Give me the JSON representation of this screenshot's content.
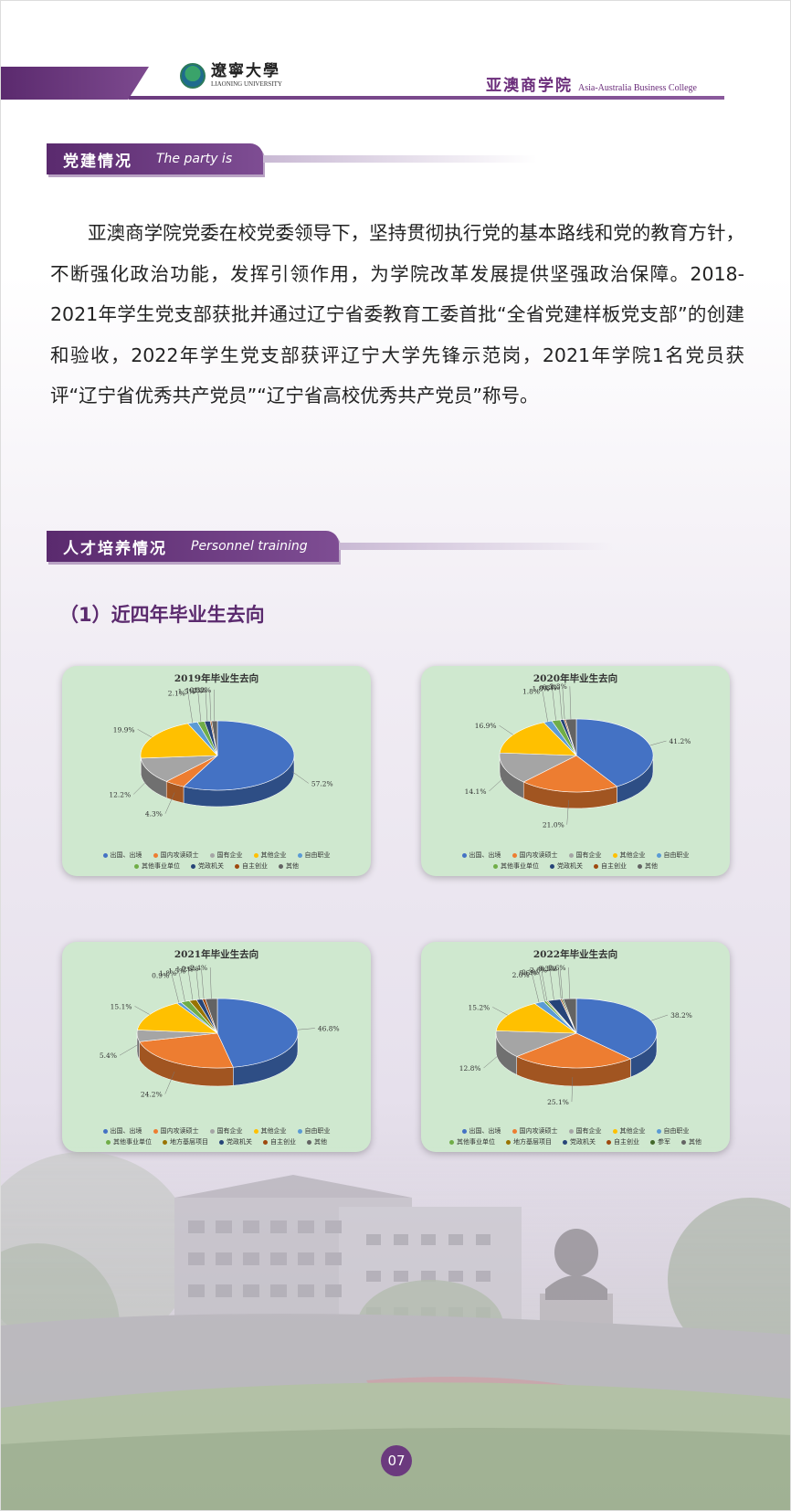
{
  "header": {
    "logo_cn": "遼寧大學",
    "logo_en": "LIAONING UNIVERSITY",
    "college_cn": "亚澳商学院",
    "college_en": "Asia-Australia Business College"
  },
  "section1": {
    "title_cn": "党建情况",
    "title_en": "The party is"
  },
  "paragraph": "亚澳商学院党委在校党委领导下，坚持贯彻执行党的基本路线和党的教育方针，不断强化政治功能，发挥引领作用，为学院改革发展提供坚强政治保障。2018-2021年学生党支部获批并通过辽宁省委教育工委首批“全省党建样板党支部”的创建和验收，2022年学生党支部获评辽宁大学先锋示范岗，2021年学院1名党员获评“辽宁省优秀共产党员”“辽宁省高校优秀共产党员”称号。",
  "section2": {
    "title_cn": "人才培养情况",
    "title_en": "Personnel training"
  },
  "subheading": "（1）近四年毕业生去向",
  "colors": {
    "出国、出境": "#4472c4",
    "国内攻读硕士": "#ed7d31",
    "国有企业": "#a5a5a5",
    "其他企业": "#ffc000",
    "自由职业": "#5b9bd5",
    "其他事业单位": "#70ad47",
    "党政机关": "#264478",
    "自主创业": "#9e480e",
    "其他": "#636363",
    "地方基层项目": "#997300",
    "参军": "#43682b"
  },
  "chart_data": [
    {
      "type": "pie",
      "title": "2019年毕业生去向",
      "categories": [
        "出国、出境",
        "国内攻读硕士",
        "国有企业",
        "其他企业",
        "自由职业",
        "其他事业单位",
        "党政机关",
        "自主创业",
        "其他"
      ],
      "values": [
        57.2,
        4.3,
        12.2,
        19.9,
        2.1,
        1.5,
        1.2,
        0.3,
        1.2
      ],
      "labels": [
        "57.2%",
        "4.3%",
        "12.2%",
        "19.9%",
        "2.1%",
        "1.5%",
        "1.2%",
        "0.3%",
        "1.2%"
      ]
    },
    {
      "type": "pie",
      "title": "2020年毕业生去向",
      "categories": [
        "出国、出境",
        "国内攻读硕士",
        "国有企业",
        "其他企业",
        "自由职业",
        "其他事业单位",
        "党政机关",
        "自主创业",
        "其他"
      ],
      "values": [
        41.2,
        21.0,
        14.1,
        16.9,
        1.8,
        1.8,
        0.8,
        0.3,
        2.3
      ],
      "labels": [
        "41.2%",
        "21.0%",
        "14.1%",
        "16.9%",
        "1.8%",
        "1.8%",
        "0.8%",
        "0.3%",
        "2.3%"
      ]
    },
    {
      "type": "pie",
      "title": "2021年毕业生去向",
      "categories": [
        "出国、出境",
        "国内攻读硕士",
        "国有企业",
        "其他企业",
        "自由职业",
        "其他事业单位",
        "地方基层项目",
        "党政机关",
        "自主创业",
        "其他"
      ],
      "values": [
        46.8,
        24.2,
        5.4,
        15.1,
        0.9,
        1.8,
        1.5,
        1.2,
        0.6,
        2.4
      ],
      "labels": [
        "46.8%",
        "24.2%",
        "5.4%",
        "15.1%",
        "0.9%",
        "1.8%",
        "1.5%",
        "1.2%",
        "0.6%",
        "2.4%"
      ]
    },
    {
      "type": "pie",
      "title": "2022年毕业生去向",
      "categories": [
        "出国、出境",
        "国内攻读硕士",
        "国有企业",
        "其他企业",
        "自由职业",
        "其他事业单位",
        "地方基层项目",
        "党政机关",
        "自主创业",
        "参军",
        "其他"
      ],
      "values": [
        38.2,
        25.1,
        12.8,
        15.2,
        2.0,
        0.6,
        0.3,
        2.6,
        0.3,
        0.3,
        2.6
      ],
      "labels": [
        "38.2%",
        "25.1%",
        "12.8%",
        "15.2%",
        "2.0%",
        "0.6%",
        "0.3%",
        "2.6%",
        "0.3%",
        "0.3%",
        "2.6%"
      ]
    }
  ],
  "page_number": "07"
}
